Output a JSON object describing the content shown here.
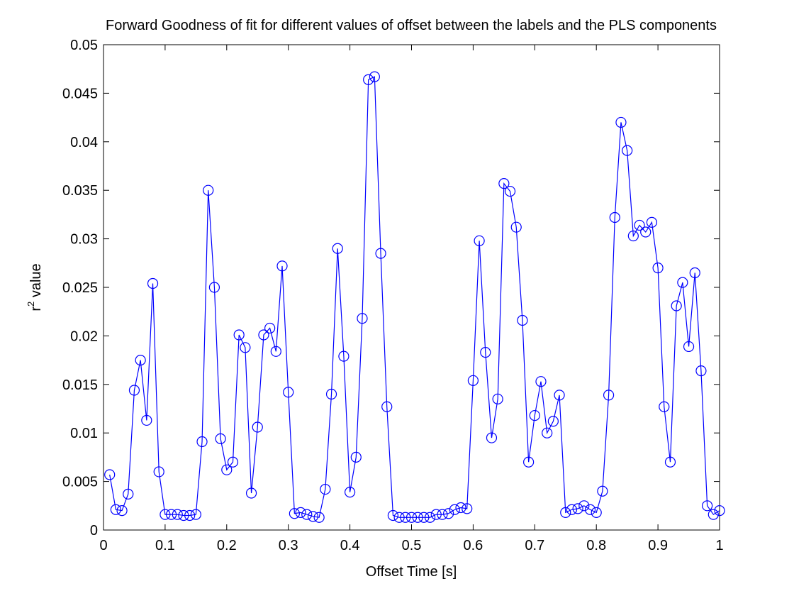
{
  "chart_data": {
    "type": "line",
    "title": "Forward Goodness of fit for different values of offset between the labels and the PLS components",
    "xlabel": "Offset Time [s]",
    "ylabel_base": "r",
    "ylabel_sup": "2",
    "ylabel_rest": " value",
    "xlim": [
      0,
      1
    ],
    "ylim": [
      0,
      0.05
    ],
    "x_ticks": [
      0,
      0.1,
      0.2,
      0.3,
      0.4,
      0.5,
      0.6,
      0.7,
      0.8,
      0.9,
      1
    ],
    "x_tick_labels": [
      "0",
      "0.1",
      "0.2",
      "0.3",
      "0.4",
      "0.5",
      "0.6",
      "0.7",
      "0.8",
      "0.9",
      "1"
    ],
    "y_ticks": [
      0,
      0.005,
      0.01,
      0.015,
      0.02,
      0.025,
      0.03,
      0.035,
      0.04,
      0.045,
      0.05
    ],
    "y_tick_labels": [
      "0",
      "0.005",
      "0.01",
      "0.015",
      "0.02",
      "0.025",
      "0.03",
      "0.035",
      "0.04",
      "0.045",
      "0.05"
    ],
    "grid": false,
    "marker": "circle",
    "color": "#0000ff",
    "series": [
      {
        "x": [
          0.01,
          0.02,
          0.03,
          0.04,
          0.05,
          0.06,
          0.07,
          0.08,
          0.09,
          0.1,
          0.11,
          0.12,
          0.13,
          0.14,
          0.15,
          0.16,
          0.17,
          0.18,
          0.19,
          0.2,
          0.21,
          0.22,
          0.23,
          0.24,
          0.25,
          0.26,
          0.27,
          0.28,
          0.29,
          0.3,
          0.31,
          0.32,
          0.33,
          0.34,
          0.35,
          0.36,
          0.37,
          0.38,
          0.39,
          0.4,
          0.41,
          0.42,
          0.43,
          0.44,
          0.45,
          0.46,
          0.47,
          0.48,
          0.49,
          0.5,
          0.51,
          0.52,
          0.53,
          0.54,
          0.55,
          0.56,
          0.57,
          0.58,
          0.59,
          0.6,
          0.61,
          0.62,
          0.63,
          0.64,
          0.65,
          0.66,
          0.67,
          0.68,
          0.69,
          0.7,
          0.71,
          0.72,
          0.73,
          0.74,
          0.75,
          0.76,
          0.77,
          0.78,
          0.79,
          0.8,
          0.81,
          0.82,
          0.83,
          0.84,
          0.85,
          0.86,
          0.87,
          0.88,
          0.89,
          0.9,
          0.91,
          0.92,
          0.93,
          0.94,
          0.95,
          0.96,
          0.97,
          0.98,
          0.99,
          1.0
        ],
        "values": [
          0.0057,
          0.0021,
          0.002,
          0.0037,
          0.0144,
          0.0175,
          0.0113,
          0.0254,
          0.006,
          0.0016,
          0.0016,
          0.0016,
          0.0015,
          0.0015,
          0.0016,
          0.0091,
          0.035,
          0.025,
          0.0094,
          0.0062,
          0.007,
          0.0201,
          0.0188,
          0.0038,
          0.0106,
          0.0201,
          0.0208,
          0.0184,
          0.0272,
          0.0142,
          0.0017,
          0.0018,
          0.0016,
          0.0014,
          0.0013,
          0.0042,
          0.014,
          0.029,
          0.0179,
          0.0039,
          0.0075,
          0.0218,
          0.0464,
          0.0467,
          0.0285,
          0.0127,
          0.0015,
          0.0013,
          0.0013,
          0.0013,
          0.0013,
          0.0013,
          0.0013,
          0.0016,
          0.0016,
          0.0017,
          0.0021,
          0.0023,
          0.0022,
          0.0154,
          0.0298,
          0.0183,
          0.0095,
          0.0135,
          0.0357,
          0.0349,
          0.0312,
          0.0216,
          0.007,
          0.0118,
          0.0153,
          0.01,
          0.0112,
          0.0139,
          0.0018,
          0.0021,
          0.0022,
          0.0025,
          0.0021,
          0.0018,
          0.004,
          0.0139,
          0.0322,
          0.042,
          0.0391,
          0.0303,
          0.0314,
          0.0307,
          0.0317,
          0.027,
          0.0127,
          0.007,
          0.0231,
          0.0255,
          0.0189,
          0.0265,
          0.0164,
          0.0025,
          0.0016,
          0.002
        ]
      }
    ]
  }
}
